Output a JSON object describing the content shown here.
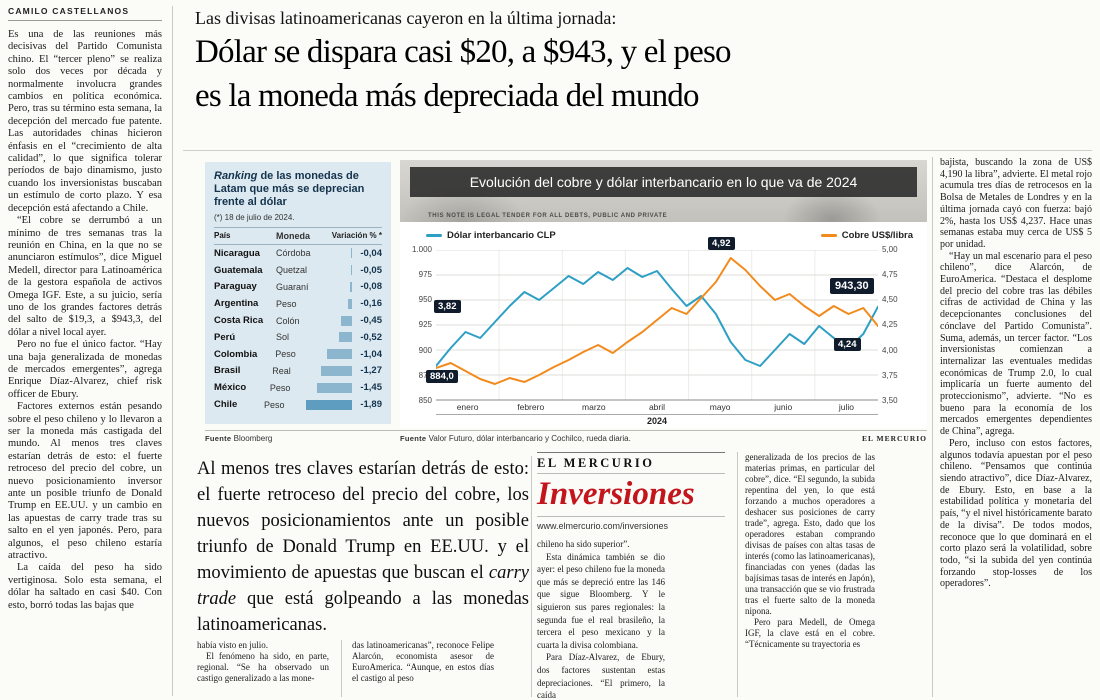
{
  "byline": "CAMILO CASTELLANOS",
  "kicker": "Las divisas latinoamericanas cayeron en la última jornada:",
  "headline_line1": "Dólar se dispara casi $20, a $943, y el peso",
  "headline_line2": "es la moneda más depreciada del mundo",
  "left_column": {
    "paragraphs": [
      "Es una de las reuniones más decisivas del Partido Comunista chino. El “tercer pleno” se realiza solo dos veces por década y normalmente involucra grandes cambios en política económica. Pero, tras su término esta semana, la decepción del mercado fue patente. Las autoridades chinas hicieron énfasis en el “crecimiento de alta calidad”, lo que significa tolerar períodos de bajo dinamismo, justo cuando los inversionistas buscaban un estímulo de corto plazo. Y esa decepción está afectando a Chile.",
      "“El cobre se derrumbó a un mínimo de tres semanas tras la reunión en China, en la que no se anunciaron estímulos”, dice Miguel Medell, director para Latinoamérica de la gestora española de activos Omega IGF. Este, a su juicio, sería uno de los grandes factores detrás del salto de $19,3, a $943,3, del dólar a nivel local ayer.",
      "Pero no fue el único factor. “Hay una baja generalizada de monedas de mercados emergentes”, agrega Enrique Díaz-Alvarez, chief risk officer de Ebury.",
      "Factores externos están pesando sobre el peso chileno y lo llevaron a ser la moneda más castigada del mundo. Al menos tres claves estarían detrás de esto: el fuerte retroceso del precio del cobre, un nuevo posicionamiento inversor ante un posible triunfo de Donald Trump en EE.UU. y un cambio en las apuestas de carry trade tras su salto en el yen japonés. Pero, para algunos, el peso chileno estaría atractivo.",
      "La caída del peso ha sido vertiginosa. Solo esta semana, el dólar ha saltado en casi $40. Con esto, borró todas las bajas que"
    ]
  },
  "ranking": {
    "title_lead": "Ranking",
    "title_rest": " de las monedas de Latam que más se deprecian frente al dólar",
    "note": "(*) 18 de julio de 2024.",
    "headers": {
      "country": "País",
      "currency": "Moneda",
      "variation": "Variación % *"
    },
    "rows": [
      {
        "country": "Nicaragua",
        "currency": "Córdoba",
        "value": "-0,04",
        "magnitude": 0.04,
        "highlight": false
      },
      {
        "country": "Guatemala",
        "currency": "Quetzal",
        "value": "-0,05",
        "magnitude": 0.05,
        "highlight": false
      },
      {
        "country": "Paraguay",
        "currency": "Guaraní",
        "value": "-0,08",
        "magnitude": 0.08,
        "highlight": false
      },
      {
        "country": "Argentina",
        "currency": "Peso",
        "value": "-0,16",
        "magnitude": 0.16,
        "highlight": false
      },
      {
        "country": "Costa Rica",
        "currency": "Colón",
        "value": "-0,45",
        "magnitude": 0.45,
        "highlight": false
      },
      {
        "country": "Perú",
        "currency": "Sol",
        "value": "-0,52",
        "magnitude": 0.52,
        "highlight": false
      },
      {
        "country": "Colombia",
        "currency": "Peso",
        "value": "-1,04",
        "magnitude": 1.04,
        "highlight": false
      },
      {
        "country": "Brasil",
        "currency": "Real",
        "value": "-1,27",
        "magnitude": 1.27,
        "highlight": false
      },
      {
        "country": "México",
        "currency": "Peso",
        "value": "-1,45",
        "magnitude": 1.45,
        "highlight": false
      },
      {
        "country": "Chile",
        "currency": "Peso",
        "value": "-1,89",
        "magnitude": 1.89,
        "highlight": true
      }
    ],
    "source_label": "Fuente",
    "source": "Bloomberg"
  },
  "chart": {
    "bill_text": "THIS NOTE IS LEGAL TENDER FOR ALL DEBTS, PUBLIC AND PRIVATE",
    "legend_left": "Dólar interbancario CLP",
    "legend_right": "Cobre US$/libra",
    "annotations": [
      {
        "label": "3,82"
      },
      {
        "label": "884,0"
      },
      {
        "label": "4,92"
      },
      {
        "label": "943,30"
      },
      {
        "label": "4,24"
      }
    ],
    "source_label": "Fuente",
    "source": "Valor Futuro, dólar interbancario y Cochilco, rueda diaria.",
    "brand": "EL MERCURIO"
  },
  "chart_data": {
    "type": "line",
    "title": "Evolución del cobre y dólar interbancario en lo que va de 2024",
    "x_labels": [
      "enero",
      "febrero",
      "marzo",
      "abril",
      "mayo",
      "junio",
      "julio"
    ],
    "x_year": "2024",
    "left_axis": {
      "label": "Dólar interbancario CLP",
      "min": 850,
      "max": 1000,
      "ticks": [
        "1.000",
        "975",
        "950",
        "925",
        "900",
        "875",
        "850"
      ]
    },
    "right_axis": {
      "label": "Cobre US$/libra",
      "min": 3.5,
      "max": 5.0,
      "ticks": [
        "5,00",
        "4,75",
        "4,50",
        "4,25",
        "4,00",
        "3,75",
        "3,50"
      ]
    },
    "grid": true,
    "legend_position": "top",
    "series": [
      {
        "name": "Dólar interbancario CLP",
        "axis": "left",
        "color": "#2d9fc4",
        "values": [
          884,
          902,
          918,
          912,
          928,
          944,
          958,
          950,
          962,
          974,
          966,
          978,
          970,
          982,
          973,
          979,
          961,
          944,
          954,
          936,
          908,
          890,
          884,
          900,
          916,
          906,
          924,
          912,
          902,
          916,
          943.3
        ],
        "start_label": "884,0",
        "end_label": "943,30"
      },
      {
        "name": "Cobre US$/libra",
        "axis": "right",
        "color": "#f28a1c",
        "values": [
          3.82,
          3.87,
          3.79,
          3.71,
          3.66,
          3.72,
          3.68,
          3.75,
          3.83,
          3.9,
          3.98,
          4.05,
          3.97,
          4.08,
          4.18,
          4.3,
          4.42,
          4.36,
          4.52,
          4.68,
          4.92,
          4.8,
          4.64,
          4.5,
          4.56,
          4.44,
          4.34,
          4.44,
          4.36,
          4.42,
          4.24
        ],
        "start_label": "3,82",
        "peak_label": "4,92",
        "end_label": "4,24"
      }
    ]
  },
  "pullquote": {
    "part1": "Al menos tres claves estarían detrás de esto: el fuerte retroceso del precio del cobre, los nuevos posicionamientos ante un posible triunfo de Donald Trump en EE.UU. y el movimiento de apuestas que buscan el ",
    "italic": "carry trade",
    "part2": " que está golpeando a las monedas latinoamericanas."
  },
  "brand_block": {
    "masthead": "EL MERCURIO",
    "title": "Inversiones",
    "url": "www.elmercurio.com/inversiones"
  },
  "bottom_columns": {
    "col1": [
      "había visto en julio.",
      "El fenómeno ha sido, en parte, regional. “Se ha observado un castigo generalizado a las mone-"
    ],
    "col2": [
      "das latinoamericanas”, reconoce Felipe Alarcón, economista asesor de EuroAmerica. “Aunque, en estos días el castigo al peso"
    ],
    "col3": [
      "chileno ha sido superior”.",
      "Esta dinámica también se dio ayer: el peso chileno fue la moneda que más se depreció entre las 146 que sigue Bloomberg. Y le siguieron sus pares regionales: la segunda fue el real brasileño, la tercera el peso mexicano y la cuarta la divisa colombiana.",
      "Para Díaz-Alvarez, de Ebury, dos factores sustentan estas depreciaciones. “El primero, la caída"
    ],
    "col4": [
      "generalizada de los precios de las materias primas, en particular del cobre”, dice. “El segundo, la subida repentina del yen, lo que está forzando a muchos operadores a deshacer sus posiciones de carry trade”, agrega. Esto, dado que los operadores estaban comprando divisas de países con altas tasas de interés (como las latinoamericanas), financiadas con yenes (dadas las bajísimas tasas de interés en Japón), una transacción que se vio frustrada tras el fuerte salto de la moneda nipona.",
      "Pero para Medell, de Omega IGF, la clave está en el cobre. “Técnicamente su trayectoria es"
    ]
  },
  "right_column": {
    "paragraphs": [
      "bajista, buscando la zona de US$ 4,190 la libra”, advierte. El metal rojo acumula tres días de retrocesos en la Bolsa de Metales de Londres y en la última jornada cayó con fuerza: bajó 2%, hasta los US$ 4,237. Hace unas semanas estaba muy cerca de US$ 5 por unidad.",
      "“Hay un mal escenario para el peso chileno”, dice Alarcón, de EuroAmerica. “Destaca el desplome del precio del cobre tras las débiles cifras de actividad de China y las decepcionantes conclusiones del cónclave del Partido Comunista”. Suma, además, un tercer factor. “Los inversionistas comienzan a internalizar las eventuales medidas económicas de Trump 2.0, lo cual implicaría un fuerte aumento del proteccionismo”, advierte. “No es bueno para la economía de los mercados emergentes dependientes de China”, agrega.",
      "Pero, incluso con estos factores, algunos todavía apuestan por el peso chileno. “Pensamos que continúa siendo atractivo”, dice Díaz-Alvarez, de Ebury. Esto, en base a la estabilidad política y monetaria del país, “y el nivel históricamente barato de la divisa”. De todos modos, reconoce que lo que dominará en el corto plazo será la volatilidad, sobre todo, “si la subida del yen continúa forzando stop-losses de los operadores”."
    ]
  }
}
